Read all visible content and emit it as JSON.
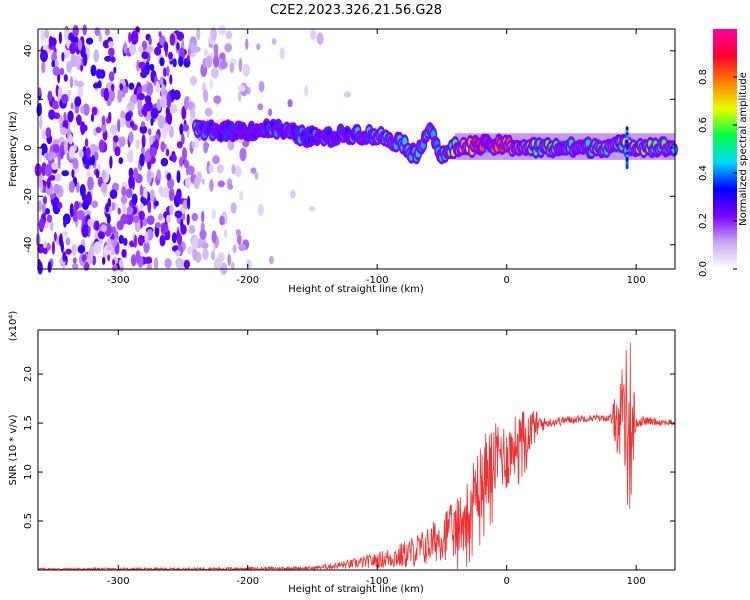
{
  "title": "C2E2.2023.326.21.56.G28",
  "chart_data": [
    {
      "type": "heatmap",
      "name": "spectrogram",
      "xlabel": "Height of straight line (km)",
      "ylabel": "Frequency (Hz)",
      "xlim": [
        -362,
        130
      ],
      "ylim": [
        -50,
        49
      ],
      "xticks": [
        -300,
        -200,
        -100,
        0,
        100
      ],
      "yticks": [
        -40,
        -20,
        0,
        20,
        40
      ],
      "colorbar": {
        "label": "Normalized spectral amplitude",
        "range": [
          0,
          1
        ],
        "ticks": [
          "0.0",
          "0.2",
          "0.4",
          "0.6",
          "0.8"
        ],
        "tick_values": [
          0,
          0.2,
          0.4,
          0.6,
          0.8
        ],
        "colormap": [
          "#ffffff",
          "#c8a8f0",
          "#7a00ff",
          "#0000ff",
          "#00d8ff",
          "#00ff40",
          "#e8ff00",
          "#ff8000",
          "#ff0030",
          "#ff00a0"
        ]
      },
      "signal_track": [
        {
          "x": -240,
          "freq": 7,
          "amp": 0.45
        },
        {
          "x": -220,
          "freq": 7,
          "amp": 0.35
        },
        {
          "x": -200,
          "freq": 7,
          "amp": 0.3
        },
        {
          "x": -180,
          "freq": 8,
          "amp": 0.35
        },
        {
          "x": -160,
          "freq": 5,
          "amp": 0.4
        },
        {
          "x": -140,
          "freq": 4,
          "amp": 0.35
        },
        {
          "x": -120,
          "freq": 6,
          "amp": 0.4
        },
        {
          "x": -100,
          "freq": 5,
          "amp": 0.45
        },
        {
          "x": -80,
          "freq": 2,
          "amp": 0.45
        },
        {
          "x": -70,
          "freq": -4,
          "amp": 0.4
        },
        {
          "x": -60,
          "freq": 9,
          "amp": 0.5
        },
        {
          "x": -50,
          "freq": -4,
          "amp": 0.45
        },
        {
          "x": -40,
          "freq": 0,
          "amp": 0.6
        },
        {
          "x": -20,
          "freq": 1,
          "amp": 0.85
        },
        {
          "x": 0,
          "freq": 1,
          "amp": 0.8
        },
        {
          "x": 20,
          "freq": 0,
          "amp": 0.55
        },
        {
          "x": 60,
          "freq": 0,
          "amp": 0.5
        },
        {
          "x": 90,
          "freq": 1,
          "amp": 0.6
        },
        {
          "x": 130,
          "freq": 0,
          "amp": 0.5
        }
      ]
    },
    {
      "type": "line",
      "name": "snr",
      "xlabel": "Height of straight line (km)",
      "ylabel": "SNR (10 * v/v)",
      "y_multiplier": "(x10⁴)",
      "xlim": [
        -362,
        130
      ],
      "ylim": [
        0,
        2.45
      ],
      "xticks": [
        -300,
        -200,
        -100,
        0,
        100
      ],
      "yticks": [
        0.5,
        1.0,
        1.5,
        2.0
      ],
      "ytick_labels": [
        "0.5",
        "1.0",
        "1.5",
        "2.0"
      ],
      "line_color": "#f03030",
      "envelope": {
        "x": [
          -362,
          -250,
          -150,
          -120,
          -100,
          -80,
          -60,
          -50,
          -40,
          -30,
          -25,
          -20,
          -15,
          -10,
          -5,
          0,
          5,
          10,
          15,
          20,
          25,
          30,
          40,
          60,
          80,
          90,
          95,
          100,
          105,
          110,
          130
        ],
        "y": [
          0.01,
          0.01,
          0.02,
          0.06,
          0.1,
          0.15,
          0.25,
          0.35,
          0.4,
          0.6,
          0.8,
          0.9,
          1.05,
          1.1,
          1.2,
          1.15,
          1.25,
          1.35,
          1.4,
          1.45,
          1.48,
          1.5,
          1.52,
          1.55,
          1.55,
          1.5,
          1.5,
          1.5,
          1.52,
          1.52,
          1.5
        ]
      },
      "noise_amp": {
        "x": [
          -362,
          -150,
          -120,
          -100,
          -60,
          -40,
          -20,
          0,
          20,
          30,
          80,
          95,
          100,
          130
        ],
        "y": [
          0.01,
          0.015,
          0.05,
          0.08,
          0.2,
          0.3,
          0.4,
          0.35,
          0.2,
          0.05,
          0.03,
          0.9,
          0.05,
          0.03
        ]
      }
    }
  ]
}
